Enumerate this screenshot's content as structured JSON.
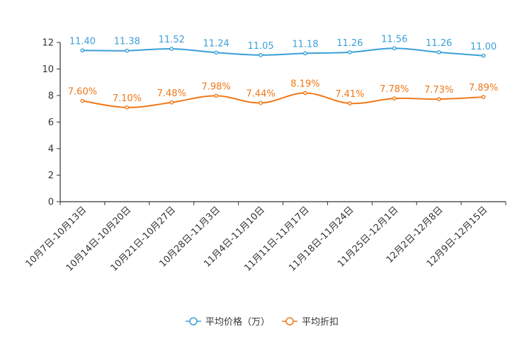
{
  "chart_data": {
    "type": "line",
    "title": "",
    "xlabel": "",
    "ylabel": "",
    "ylim": [
      0,
      12
    ],
    "yticks": [
      0,
      2,
      4,
      6,
      8,
      10,
      12
    ],
    "grid": false,
    "legend_position": "bottom-center",
    "categories": [
      "10月7日-10月13日",
      "10月14日-10月20日",
      "10月21日-10月27日",
      "10月28日-11月3日",
      "11月4日-11月10日",
      "11月11日-11月17日",
      "11月18日-11月24日",
      "11月25日-12月1日",
      "12月2日-12月8日",
      "12月9日-12月15日"
    ],
    "series": [
      {
        "name": "平均价格（万）",
        "color": "#3aa0d8",
        "values": [
          11.4,
          11.38,
          11.52,
          11.24,
          11.05,
          11.18,
          11.26,
          11.56,
          11.26,
          11.0
        ],
        "labels": [
          "11.40",
          "11.38",
          "11.52",
          "11.24",
          "11.05",
          "11.18",
          "11.26",
          "11.56",
          "11.26",
          "11.00"
        ]
      },
      {
        "name": "平均折扣",
        "color": "#f07818",
        "values": [
          7.6,
          7.1,
          7.48,
          7.98,
          7.44,
          8.19,
          7.41,
          7.78,
          7.73,
          7.89
        ],
        "labels": [
          "7.60%",
          "7.10%",
          "7.48%",
          "7.98%",
          "7.44%",
          "8.19%",
          "7.41%",
          "7.78%",
          "7.73%",
          "7.89%"
        ]
      }
    ]
  }
}
